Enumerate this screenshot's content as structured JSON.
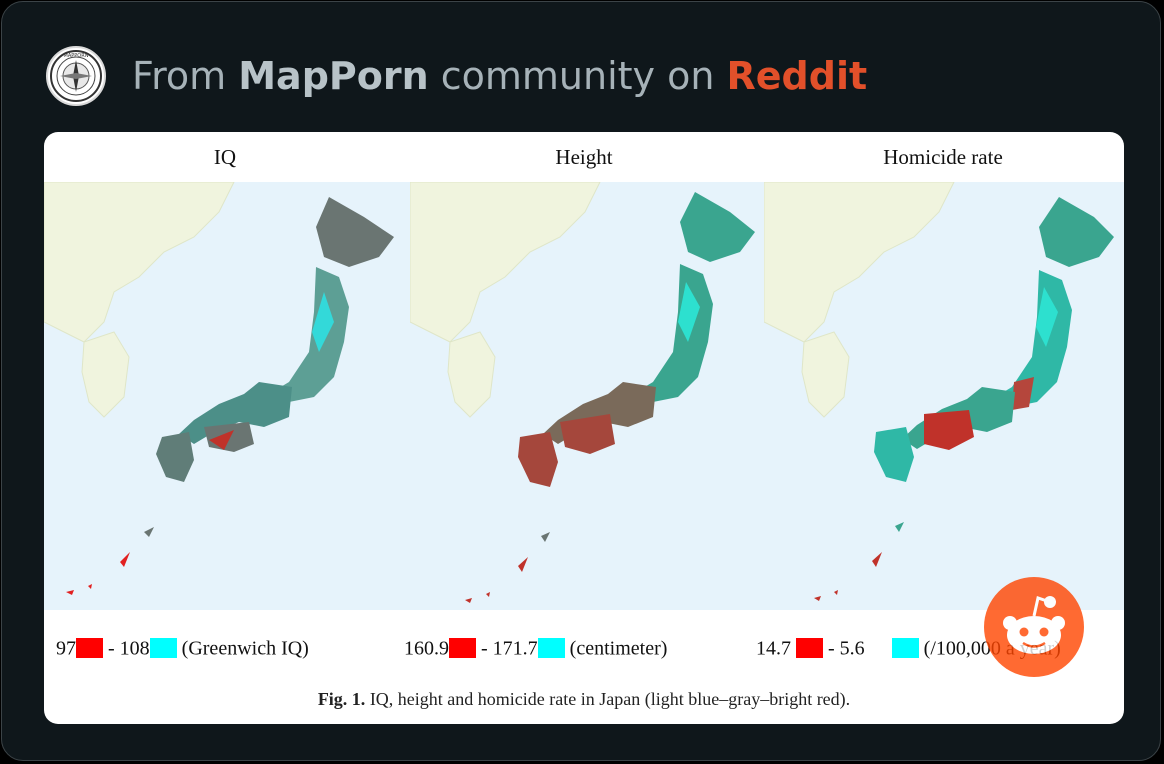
{
  "header": {
    "prefix": "From ",
    "community": "MapPorn",
    "middle": " community on ",
    "platform": "Reddit"
  },
  "colors": {
    "background": "#0f171b",
    "community": "#b8c3c8",
    "platform": "#e2502a",
    "legend_low": "#ff0000",
    "legend_high": "#00ffff",
    "sea": "#e6f3fb",
    "land_other": "#f0f4de",
    "region_teal": "#3aa58f",
    "region_red": "#b5463c",
    "region_gray": "#6a7572"
  },
  "avatar": {
    "icon": "mapporn-compass-icon",
    "text": "MAPPORN"
  },
  "maps": [
    {
      "title": "IQ",
      "legend": {
        "low": "97",
        "sep": " - ",
        "high": "108",
        "unit": "(Greenwich IQ)"
      }
    },
    {
      "title": "Height",
      "legend": {
        "low": "160.9",
        "sep": " - ",
        "high": "171.7",
        "unit": "(centimeter)"
      }
    },
    {
      "title": "Homicide rate",
      "legend": {
        "low": "14.7",
        "sep": " - ",
        "high": "5.6",
        "unit": "(/100,000 a year)"
      }
    }
  ],
  "caption": {
    "fig_label": "Fig. 1.",
    "text": " IQ, height and homicide rate in Japan (light blue–gray–bright red)."
  },
  "reddit_button": {
    "icon": "reddit-snoo-icon"
  }
}
